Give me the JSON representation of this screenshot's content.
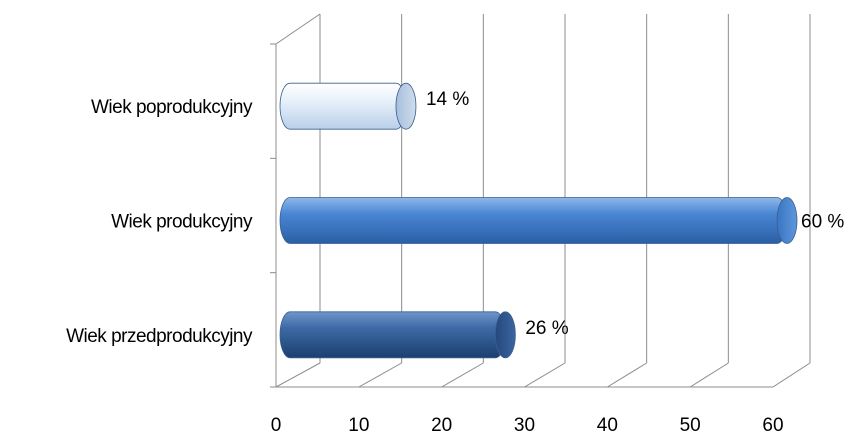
{
  "chart_data": {
    "type": "bar",
    "orientation": "horizontal",
    "three_d": true,
    "categories": [
      "Wiek przedprodukcyjny",
      "Wiek produkcyjny",
      "Wiek poprodukcyjny"
    ],
    "values": [
      26,
      60,
      14
    ],
    "data_labels": [
      "26 %",
      "60 %",
      "14 %"
    ],
    "xlim": [
      0,
      60
    ],
    "xticks": [
      0,
      10,
      20,
      30,
      40,
      50,
      60
    ],
    "grid": true,
    "legend": "none",
    "title": "",
    "xlabel": "",
    "ylabel": "",
    "colors": {
      "Wiek przedprodukcyjny": "#2f5d97",
      "Wiek produkcyjny": "#4a86d4",
      "Wiek poprodukcyjny": "#dce9f7"
    }
  }
}
